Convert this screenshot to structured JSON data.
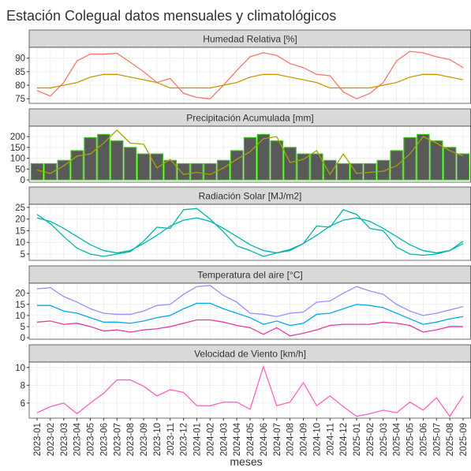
{
  "title": "Estación Colegual datos mensuales y climatológicos",
  "x_label": "meses",
  "categories": [
    "2023-01",
    "2023-02",
    "2023-03",
    "2023-04",
    "2023-05",
    "2023-06",
    "2023-07",
    "2023-08",
    "2023-09",
    "2023-10",
    "2023-11",
    "2023-12",
    "2024-01",
    "2024-02",
    "2024-03",
    "2024-04",
    "2024-05",
    "2024-06",
    "2024-07",
    "2024-08",
    "2024-09",
    "2024-10",
    "2024-11",
    "2024-12",
    "2025-01",
    "2025-02",
    "2025-03",
    "2025-04",
    "2025-05",
    "2025-06",
    "2025-07",
    "2025-08",
    "2025-09"
  ],
  "chart_data": [
    {
      "type": "line",
      "title": "Humedad Relativa [%]",
      "ylim": [
        73.3,
        94
      ],
      "yticks": [
        75,
        80,
        85,
        90
      ],
      "grid": true,
      "series": [
        {
          "color": "#f8766d",
          "values": [
            78,
            76,
            81,
            89,
            91.5,
            91.5,
            91.8,
            88.5,
            85,
            81,
            82.5,
            77,
            75.5,
            75,
            80,
            85.5,
            90.5,
            92,
            91,
            88,
            86.5,
            84,
            83.5,
            77.5,
            75,
            77,
            81,
            89,
            92.5,
            92,
            90.5,
            89.5,
            86.5
          ]
        },
        {
          "color": "#c99800",
          "values": [
            79,
            79,
            80,
            81,
            83,
            84,
            84,
            83,
            82,
            81,
            79,
            79,
            79,
            79,
            80,
            81,
            83,
            84,
            84,
            83,
            82,
            81,
            79,
            79,
            79,
            79,
            80,
            81,
            83,
            84,
            84,
            83,
            82
          ]
        }
      ]
    },
    {
      "type": "bar",
      "title": "Precipitación Acumulada [mm]",
      "ylim": [
        -11,
        248
      ],
      "yticks": [
        0,
        50,
        100,
        150,
        200
      ],
      "grid": true,
      "series": [
        {
          "type": "bar",
          "color": "#595959",
          "border_color": "#44bb22",
          "values": [
            75,
            75,
            90,
            135,
            195,
            210,
            180,
            150,
            120,
            120,
            90,
            75,
            75,
            75,
            90,
            135,
            195,
            210,
            180,
            150,
            120,
            120,
            90,
            75,
            75,
            75,
            90,
            135,
            195,
            210,
            180,
            150,
            120
          ]
        },
        {
          "type": "line",
          "color": "#a3a500",
          "values": [
            45,
            30,
            65,
            110,
            120,
            170,
            230,
            170,
            165,
            55,
            95,
            25,
            35,
            25,
            55,
            95,
            130,
            190,
            200,
            80,
            95,
            135,
            25,
            120,
            30,
            35,
            40,
            65,
            120,
            200,
            170,
            135,
            110
          ]
        }
      ]
    },
    {
      "type": "line",
      "title": "Radiación Solar [MJ/m2]",
      "ylim": [
        2.3,
        26.3
      ],
      "yticks": [
        5,
        10,
        15,
        20,
        25
      ],
      "grid": true,
      "series": [
        {
          "color": "#00b89f",
          "values": [
            22,
            18,
            12.5,
            7.5,
            5,
            4,
            5,
            6,
            10.5,
            16.5,
            16,
            24,
            24.5,
            20,
            14.5,
            8.5,
            6.5,
            4,
            5.5,
            7,
            9.5,
            17,
            16.5,
            24,
            22,
            16,
            15,
            8,
            5,
            4.5,
            5,
            6.5,
            10.5
          ]
        },
        {
          "color": "#00b3b0",
          "values": [
            20.5,
            19,
            16,
            12.5,
            9,
            6.5,
            5.5,
            6.5,
            9.5,
            13,
            17,
            19.5,
            20.5,
            19,
            16,
            12.5,
            9,
            6.5,
            5.5,
            6.5,
            9.5,
            13,
            17,
            19.5,
            20.5,
            19,
            16,
            12.5,
            9,
            6.5,
            5.5,
            6.5,
            9.5
          ]
        }
      ]
    },
    {
      "type": "line",
      "title": "Temperatura del aire [°C]",
      "ylim": [
        -0.7,
        24.5
      ],
      "yticks": [
        0,
        5,
        10,
        15,
        20
      ],
      "grid": true,
      "series": [
        {
          "color": "#9590ff",
          "values": [
            22,
            22.5,
            18.5,
            16,
            13,
            11,
            10.5,
            10.5,
            12,
            14.5,
            15,
            19.5,
            23,
            23.5,
            19,
            16,
            11,
            10.5,
            9.5,
            11,
            11.5,
            16,
            16.5,
            20,
            23,
            21,
            19.5,
            15,
            12,
            10,
            11,
            12.5,
            14
          ]
        },
        {
          "color": "#00a9f0",
          "values": [
            14.5,
            14.5,
            12,
            11,
            9,
            7,
            7,
            6.5,
            7.5,
            9,
            10,
            13,
            15.5,
            15.5,
            13,
            11,
            9,
            6,
            7.5,
            5.5,
            6.5,
            10.5,
            11,
            13,
            15,
            14.5,
            13.5,
            11,
            8.5,
            6,
            7,
            8.5,
            9.5
          ]
        },
        {
          "color": "#e7399a",
          "values": [
            7,
            7.5,
            6,
            6.5,
            5,
            3,
            3.5,
            2.5,
            3.5,
            4,
            5,
            6.5,
            8,
            8,
            7,
            5.5,
            4.5,
            1.5,
            4.5,
            0.8,
            2,
            3.5,
            5.5,
            6,
            6,
            6,
            7,
            6.5,
            5.5,
            2.5,
            3.5,
            5,
            5
          ]
        }
      ]
    },
    {
      "type": "line",
      "title": "Velocidad de Viento [km/h]",
      "ylim": [
        4.3,
        10.6
      ],
      "yticks": [
        6,
        8,
        10
      ],
      "grid": true,
      "series": [
        {
          "color": "#ff62bc",
          "values": [
            4.9,
            5.6,
            6,
            4.8,
            6,
            7.1,
            8.6,
            8.6,
            7.9,
            6.8,
            7.5,
            7.2,
            5.7,
            5.7,
            6.1,
            6.1,
            5.3,
            10.1,
            5.7,
            6.1,
            8.3,
            5.7,
            6.8,
            5.6,
            4.5,
            4.8,
            5.2,
            4.9,
            6.1,
            5.2,
            6.6,
            4.5,
            6.8
          ]
        }
      ]
    }
  ]
}
